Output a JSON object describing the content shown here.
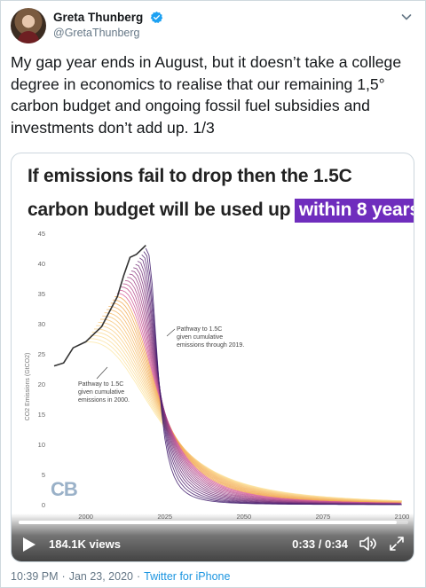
{
  "author": {
    "name": "Greta Thunberg",
    "handle": "@GretaThunberg",
    "verified": true
  },
  "tweet": {
    "text": "My gap year ends in August, but it doesn’t take a college degree in economics to realise that our remaining 1,5° carbon budget and ongoing fossil fuel subsidies and investments don’t add up. 1/3"
  },
  "media": {
    "title_line1": "If emissions fail to drop then the 1.5C",
    "title_line2": "carbon budget will be used up",
    "title_highlight": "within 8 years",
    "logo": "CB",
    "highlight_color": "#6f2dbd",
    "video": {
      "views": "184.1K views",
      "time": "0:33 / 0:34",
      "progress": 0.97
    }
  },
  "chart_data": {
    "type": "line",
    "ylabel": "CO2 Emissions (GtCO2)",
    "ylim": [
      0,
      45
    ],
    "xlim": [
      1990,
      2100
    ],
    "y_ticks": [
      0,
      5,
      10,
      15,
      20,
      25,
      30,
      35,
      40,
      45
    ],
    "x_ticks": [
      2000,
      2025,
      2050,
      2075,
      2100
    ],
    "series": [
      {
        "x": [
          1990,
          1993,
          1996,
          2000,
          2003,
          2005,
          2008,
          2010,
          2012,
          2014,
          2016,
          2018,
          2019
        ],
        "values": [
          23,
          23.5,
          26,
          27,
          28.5,
          29.5,
          32.5,
          34.5,
          38,
          41,
          41.5,
          42.5,
          43
        ]
      }
    ],
    "annotations": [
      "Pathway to 1.5C given cumulative emissions through 2019.",
      "Pathway to 1.5C given cumulative emissions in 2000."
    ]
  },
  "footer": {
    "time": "10:39 PM",
    "date": "Jan 23, 2020",
    "source": "Twitter for iPhone"
  },
  "colors": {
    "accent": "#1b95e0",
    "muted": "#657786"
  }
}
